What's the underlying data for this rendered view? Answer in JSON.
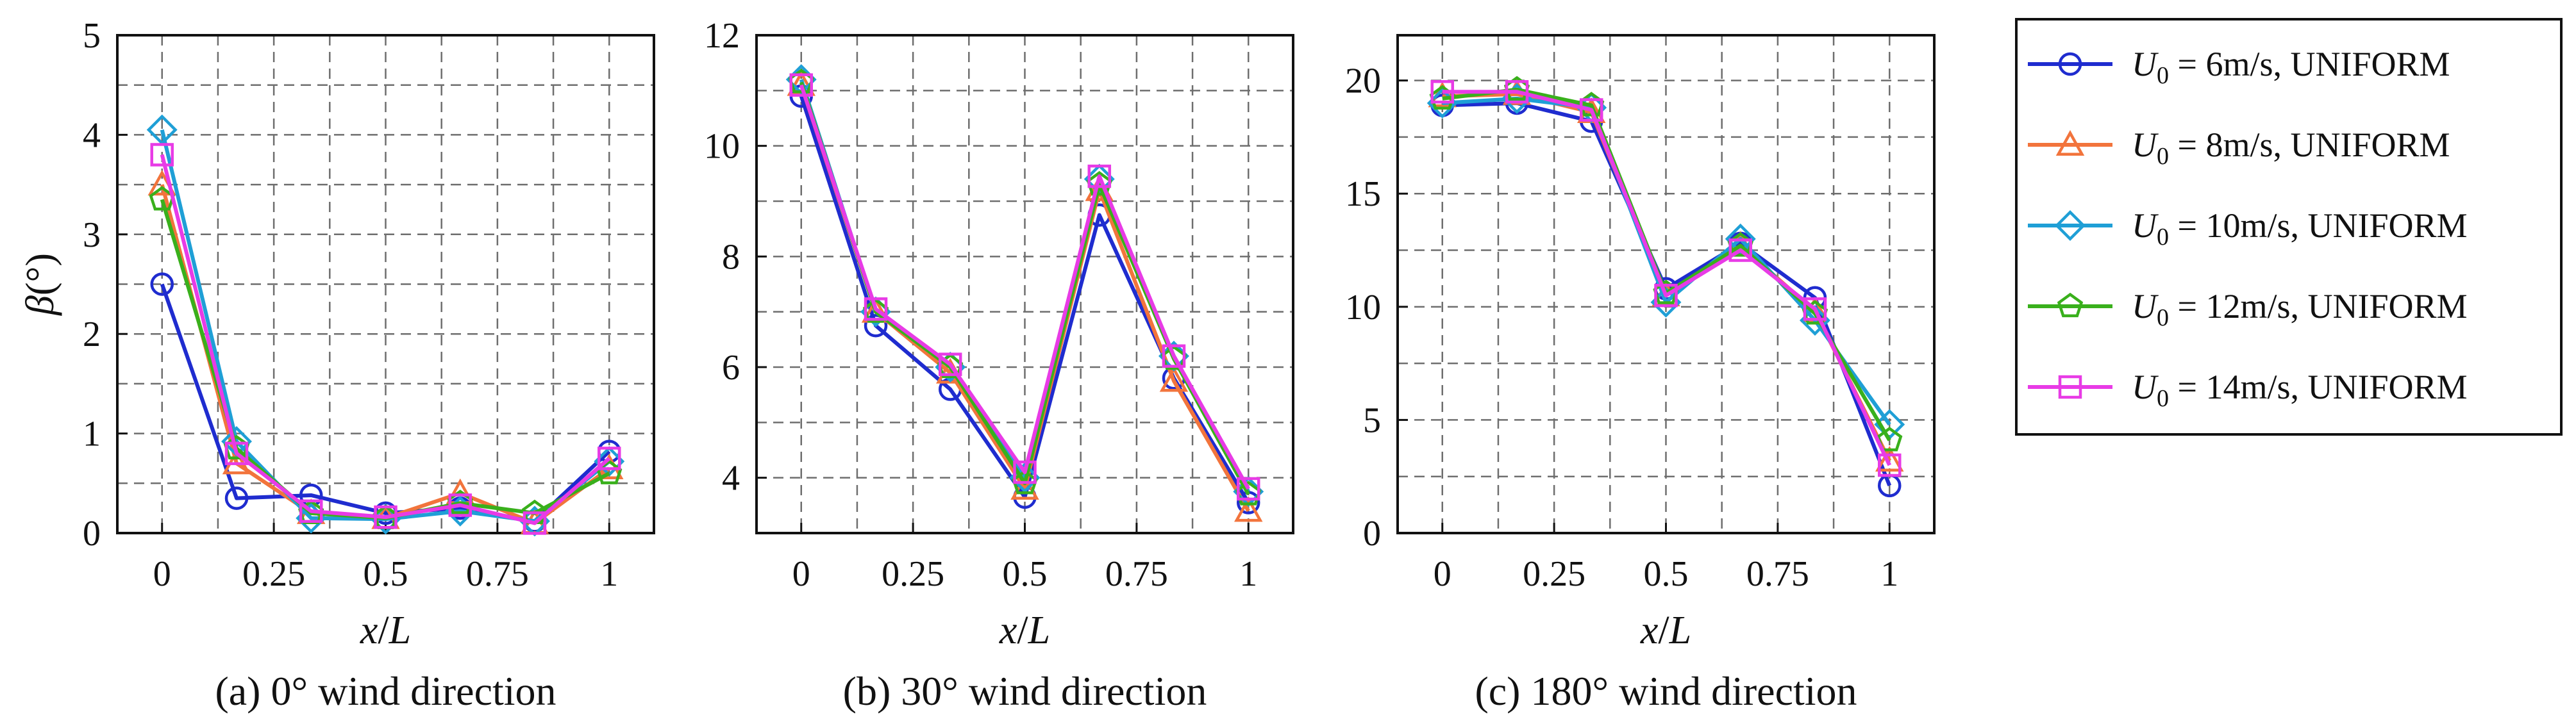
{
  "chart_data": [
    {
      "type": "line",
      "caption": "(a) 0° wind direction",
      "xlabel_var": "x",
      "xlabel_sep": "/",
      "xlabel_den": "L",
      "ylabel_var": "β",
      "ylabel_unit": "(°)",
      "xlim": [
        -0.1,
        1.1
      ],
      "ylim": [
        0,
        5
      ],
      "xticks": [
        0,
        0.25,
        0.5,
        0.75,
        1
      ],
      "xtick_labels": [
        "0",
        "0.25",
        "0.5",
        "0.75",
        "1"
      ],
      "yticks": [
        0,
        1,
        2,
        3,
        4,
        5
      ],
      "ytick_labels": [
        "0",
        "1",
        "2",
        "3",
        "4",
        "5"
      ],
      "grid": true,
      "x": [
        0,
        0.1667,
        0.3333,
        0.5,
        0.6667,
        0.8333,
        1
      ],
      "series": [
        {
          "name": "U0 = 6m/s, UNIFORM",
          "values": [
            2.5,
            0.35,
            0.38,
            0.2,
            0.25,
            0.12,
            0.82
          ]
        },
        {
          "name": "U0 = 8m/s, UNIFORM",
          "values": [
            3.5,
            0.7,
            0.2,
            0.15,
            0.4,
            0.1,
            0.65
          ]
        },
        {
          "name": "U0 = 10m/s, UNIFORM",
          "values": [
            4.05,
            0.92,
            0.15,
            0.14,
            0.22,
            0.12,
            0.72
          ]
        },
        {
          "name": "U0 = 12m/s, UNIFORM",
          "values": [
            3.35,
            0.85,
            0.2,
            0.15,
            0.3,
            0.2,
            0.6
          ]
        },
        {
          "name": "U0 = 14m/s, UNIFORM",
          "values": [
            3.8,
            0.8,
            0.22,
            0.16,
            0.28,
            0.1,
            0.75
          ]
        }
      ]
    },
    {
      "type": "line",
      "caption": "(b) 30° wind direction",
      "xlabel_var": "x",
      "xlabel_sep": "/",
      "xlabel_den": "L",
      "xlim": [
        -0.1,
        1.1
      ],
      "ylim": [
        3,
        12
      ],
      "xticks": [
        0,
        0.25,
        0.5,
        0.75,
        1
      ],
      "xtick_labels": [
        "0",
        "0.25",
        "0.5",
        "0.75",
        "1"
      ],
      "yticks": [
        4,
        6,
        8,
        10,
        12
      ],
      "ytick_labels": [
        "4",
        "6",
        "8",
        "10",
        "12"
      ],
      "grid": true,
      "x": [
        0,
        0.1667,
        0.3333,
        0.5,
        0.6667,
        0.8333,
        1
      ],
      "series": [
        {
          "name": "U0 = 6m/s, UNIFORM",
          "values": [
            10.9,
            6.75,
            5.6,
            3.65,
            8.75,
            5.8,
            3.55
          ]
        },
        {
          "name": "U0 = 8m/s, UNIFORM",
          "values": [
            11.1,
            7.0,
            5.9,
            3.8,
            9.2,
            5.75,
            3.4
          ]
        },
        {
          "name": "U0 = 10m/s, UNIFORM",
          "values": [
            11.2,
            7.0,
            6.0,
            4.0,
            9.4,
            6.2,
            3.75
          ]
        },
        {
          "name": "U0 = 12m/s, UNIFORM",
          "values": [
            11.15,
            7.0,
            6.0,
            3.9,
            9.3,
            6.15,
            3.7
          ]
        },
        {
          "name": "U0 = 14m/s, UNIFORM",
          "values": [
            11.1,
            7.05,
            6.05,
            4.1,
            9.45,
            6.2,
            3.8
          ]
        }
      ]
    },
    {
      "type": "line",
      "caption": "(c) 180° wind direction",
      "xlabel_var": "x",
      "xlabel_sep": "/",
      "xlabel_den": "L",
      "xlim": [
        -0.1,
        1.1
      ],
      "ylim": [
        0,
        22
      ],
      "xticks": [
        0,
        0.25,
        0.5,
        0.75,
        1
      ],
      "xtick_labels": [
        "0",
        "0.25",
        "0.5",
        "0.75",
        "1"
      ],
      "yticks": [
        0,
        5,
        10,
        15,
        20
      ],
      "ytick_labels": [
        "0",
        "5",
        "10",
        "15",
        "20"
      ],
      "grid": true,
      "x": [
        0,
        0.1667,
        0.3333,
        0.5,
        0.6667,
        0.8333,
        1
      ],
      "series": [
        {
          "name": "U0 = 6m/s, UNIFORM",
          "values": [
            18.9,
            19.0,
            18.2,
            10.8,
            12.8,
            10.4,
            2.1
          ]
        },
        {
          "name": "U0 = 8m/s, UNIFORM",
          "values": [
            19.3,
            19.4,
            18.6,
            10.5,
            12.7,
            9.8,
            3.2
          ]
        },
        {
          "name": "U0 = 10m/s, UNIFORM",
          "values": [
            19.0,
            19.2,
            18.8,
            10.2,
            13.0,
            9.4,
            4.8
          ]
        },
        {
          "name": "U0 = 12m/s, UNIFORM",
          "values": [
            19.2,
            19.6,
            18.9,
            10.6,
            12.7,
            9.7,
            4.1
          ]
        },
        {
          "name": "U0 = 14m/s, UNIFORM",
          "values": [
            19.5,
            19.5,
            18.7,
            10.5,
            12.5,
            9.9,
            3.0
          ]
        }
      ]
    }
  ],
  "legend": {
    "placement": "right",
    "entries": [
      {
        "symbol": "U",
        "subscript": "0",
        "text": " = 6m/s, UNIFORM",
        "color": "#1f2ccf",
        "marker": "circle"
      },
      {
        "symbol": "U",
        "subscript": "0",
        "text": " = 8m/s, UNIFORM",
        "color": "#f2743c",
        "marker": "triangle"
      },
      {
        "symbol": "U",
        "subscript": "0",
        "text": " = 10m/s, UNIFORM",
        "color": "#1f9fd6",
        "marker": "diamond"
      },
      {
        "symbol": "U",
        "subscript": "0",
        "text": " = 12m/s, UNIFORM",
        "color": "#39b01c",
        "marker": "pentagon"
      },
      {
        "symbol": "U",
        "subscript": "0",
        "text": " = 14m/s, UNIFORM",
        "color": "#e83be6",
        "marker": "square"
      }
    ]
  }
}
